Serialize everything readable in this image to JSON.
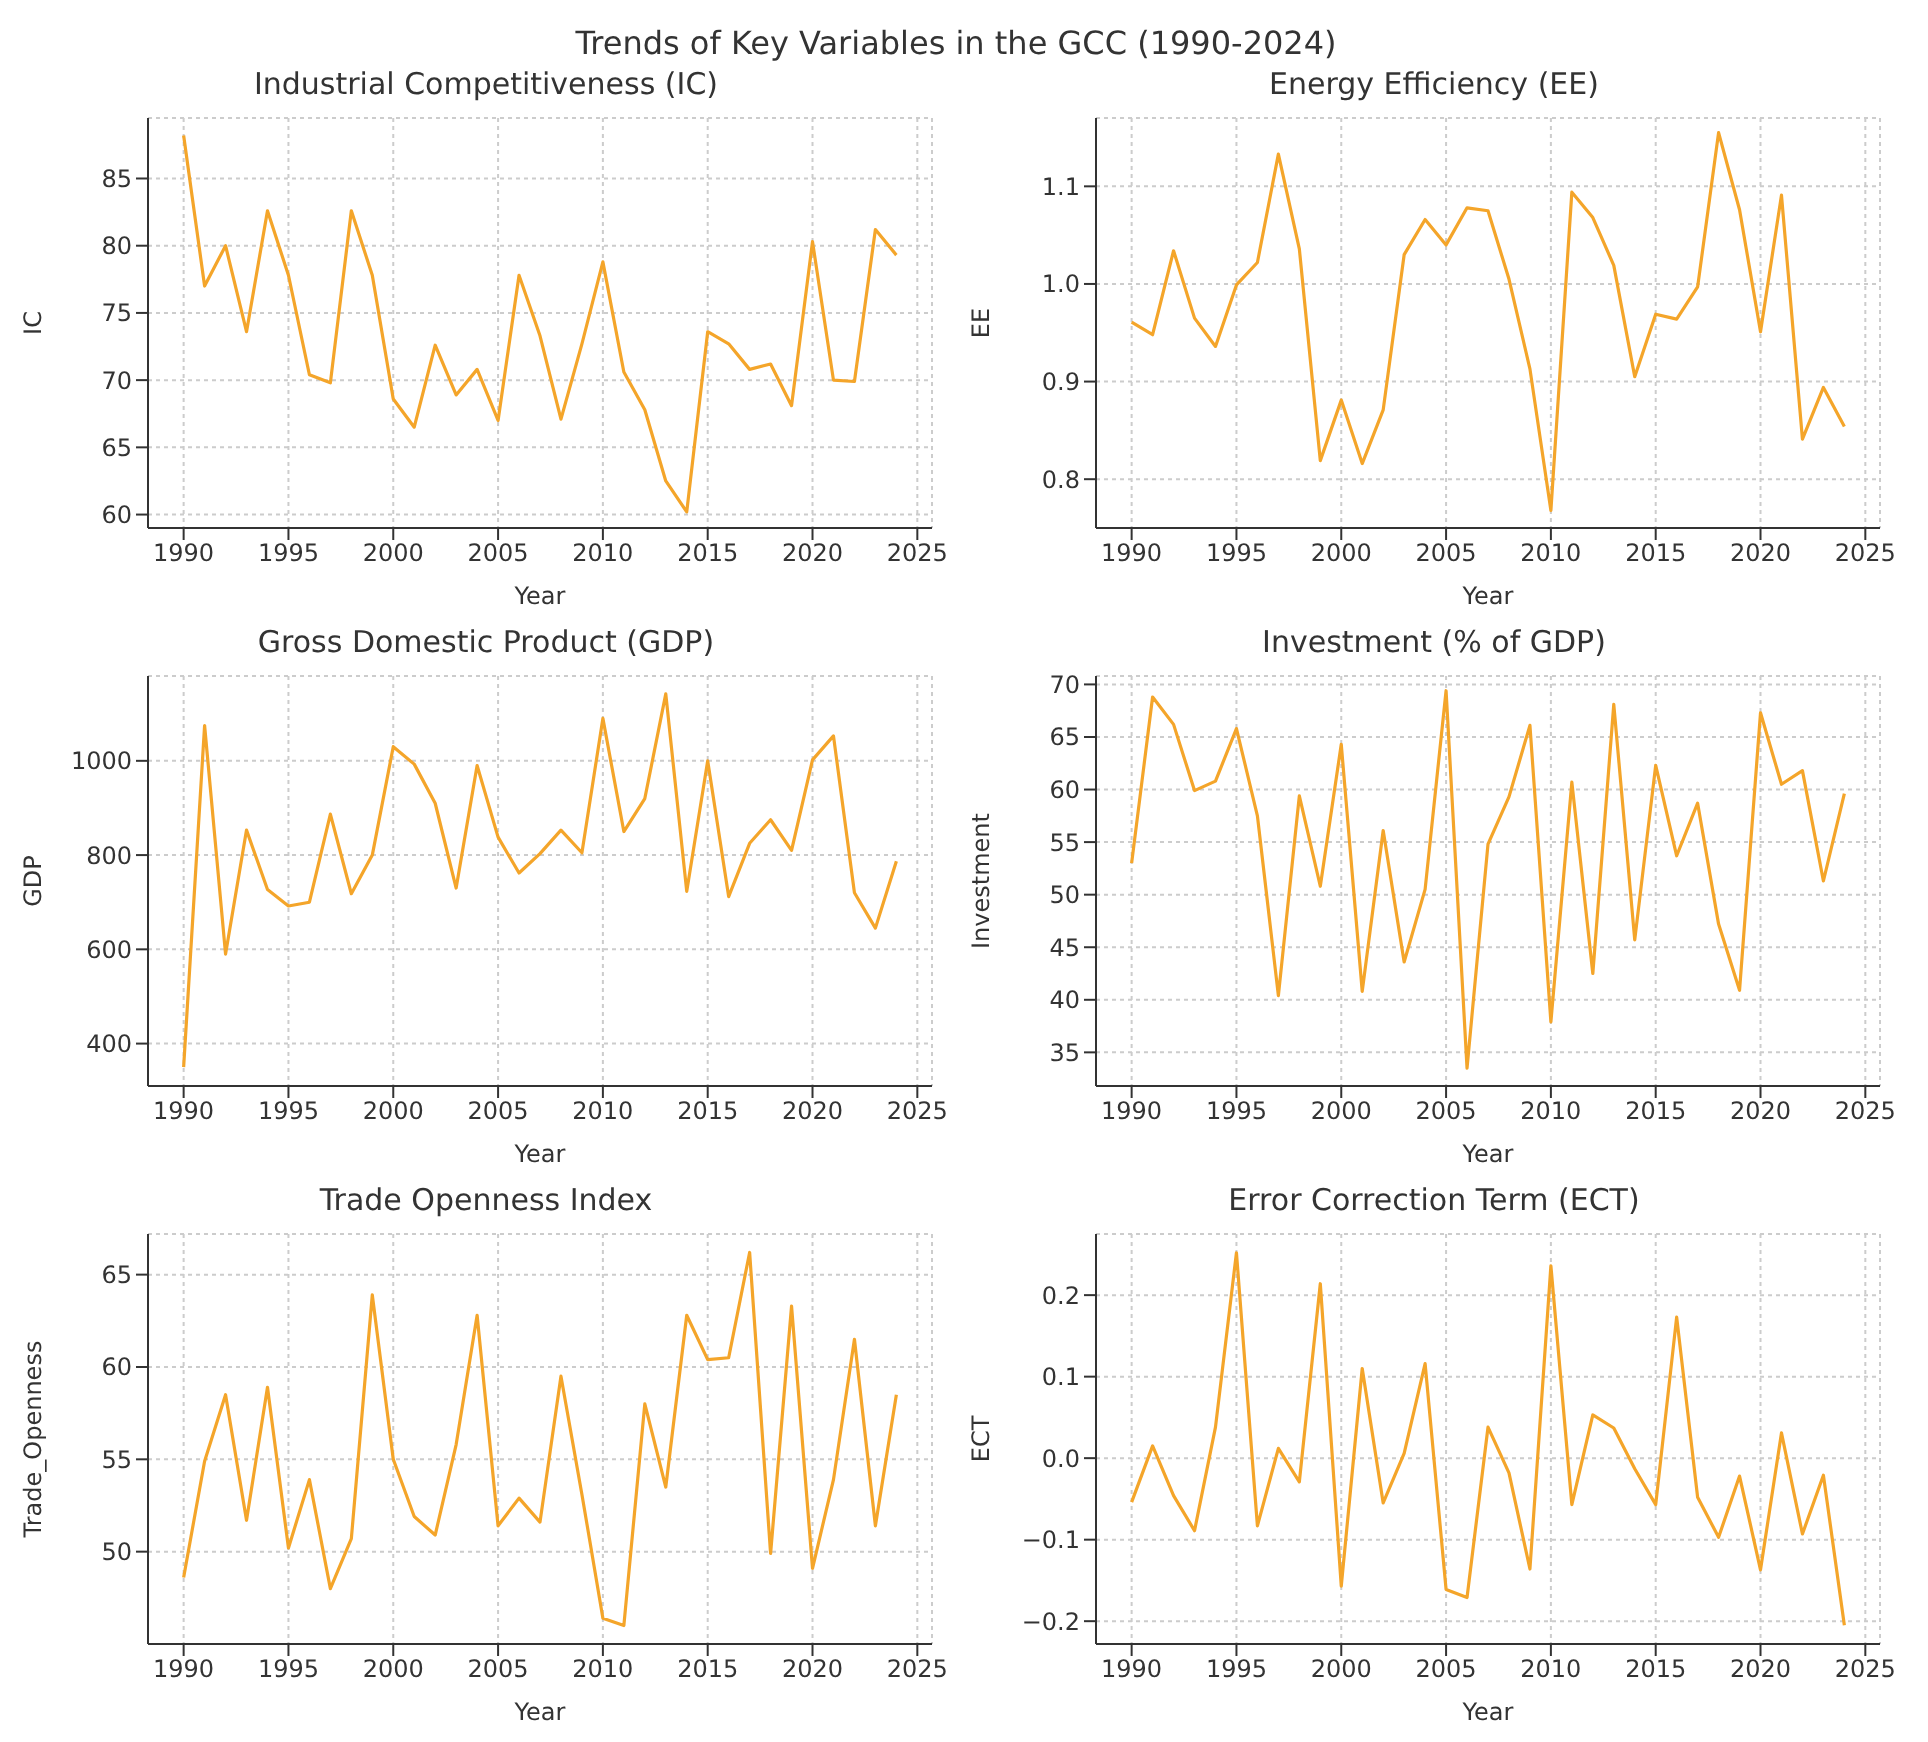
{
  "chart_data": [
    {
      "type": "other",
      "title": "Trends of Key Variables in the GCC (1990-2024)"
    },
    {
      "type": "line",
      "title": "Industrial Competitiveness (IC)",
      "xlabel": "Year",
      "ylabel": "IC",
      "grid": true,
      "marker": "none",
      "xlim": [
        1988.3,
        2025.7
      ],
      "xticks": [
        1990,
        1995,
        2000,
        2005,
        2010,
        2015,
        2020,
        2025
      ],
      "ylim": [
        59,
        89.5
      ],
      "yticks": [
        60,
        65,
        70,
        75,
        80,
        85
      ],
      "x": [
        1990,
        1991,
        1992,
        1993,
        1994,
        1995,
        1996,
        1997,
        1998,
        1999,
        2000,
        2001,
        2002,
        2003,
        2004,
        2005,
        2006,
        2007,
        2008,
        2009,
        2010,
        2011,
        2012,
        2013,
        2014,
        2015,
        2016,
        2017,
        2018,
        2019,
        2020,
        2021,
        2022,
        2023,
        2024
      ],
      "series": [
        {
          "color": "#f4a52a",
          "values": [
            88.2,
            77.0,
            80.0,
            73.6,
            82.6,
            77.8,
            70.4,
            69.8,
            82.6,
            77.8,
            68.6,
            66.5,
            72.6,
            68.9,
            70.8,
            67.0,
            77.8,
            73.3,
            67.1,
            72.7,
            78.8,
            70.6,
            67.8,
            62.5,
            60.2,
            73.6,
            72.7,
            70.8,
            71.2,
            68.1,
            80.3,
            70.0,
            69.9,
            81.2,
            79.3
          ]
        }
      ]
    },
    {
      "type": "line",
      "title": "Energy Efficiency (EE)",
      "xlabel": "Year",
      "ylabel": "EE",
      "grid": true,
      "marker": "none",
      "xlim": [
        1988.3,
        2025.7
      ],
      "xticks": [
        1990,
        1995,
        2000,
        2005,
        2010,
        2015,
        2020,
        2025
      ],
      "ylim": [
        0.75,
        1.17
      ],
      "yticks": [
        {
          "value": 0.8,
          "label": "0.8"
        },
        {
          "value": 0.9,
          "label": "0.9"
        },
        {
          "value": 1.0,
          "label": "1.0"
        },
        {
          "value": 1.1,
          "label": "1.1"
        }
      ],
      "x": [
        1990,
        1991,
        1992,
        1993,
        1994,
        1995,
        1996,
        1997,
        1998,
        1999,
        2000,
        2001,
        2002,
        2003,
        2004,
        2005,
        2006,
        2007,
        2008,
        2009,
        2010,
        2011,
        2012,
        2013,
        2014,
        2015,
        2016,
        2017,
        2018,
        2019,
        2020,
        2021,
        2022,
        2023,
        2024
      ],
      "series": [
        {
          "color": "#f4a52a",
          "values": [
            0.961,
            0.948,
            1.034,
            0.965,
            0.936,
            0.999,
            1.022,
            1.133,
            1.036,
            0.819,
            0.881,
            0.816,
            0.871,
            1.03,
            1.066,
            1.04,
            1.078,
            1.075,
            1.005,
            0.913,
            0.768,
            1.094,
            1.068,
            1.019,
            0.905,
            0.969,
            0.964,
            0.997,
            1.155,
            1.076,
            0.951,
            1.091,
            0.841,
            0.894,
            0.854
          ]
        }
      ]
    },
    {
      "type": "line",
      "title": "Gross Domestic Product (GDP)",
      "xlabel": "Year",
      "ylabel": "GDP",
      "grid": true,
      "marker": "none",
      "xlim": [
        1988.3,
        2025.7
      ],
      "xticks": [
        1990,
        1995,
        2000,
        2005,
        2010,
        2015,
        2020,
        2025
      ],
      "ylim": [
        310,
        1180
      ],
      "yticks": [
        400,
        600,
        800,
        1000
      ],
      "x": [
        1990,
        1991,
        1992,
        1993,
        1994,
        1995,
        1996,
        1997,
        1998,
        1999,
        2000,
        2001,
        2002,
        2003,
        2004,
        2005,
        2006,
        2007,
        2008,
        2009,
        2010,
        2011,
        2012,
        2013,
        2014,
        2015,
        2016,
        2017,
        2018,
        2019,
        2020,
        2021,
        2022,
        2023,
        2024
      ],
      "series": [
        {
          "color": "#f4a52a",
          "values": [
            350,
            1075,
            590,
            853,
            727,
            692,
            700,
            887,
            718,
            800,
            1030,
            993,
            910,
            730,
            990,
            838,
            762,
            803,
            853,
            805,
            1090,
            850,
            920,
            1142,
            723,
            1000,
            712,
            825,
            875,
            810,
            1002,
            1053,
            720,
            645,
            787
          ]
        }
      ]
    },
    {
      "type": "line",
      "title": "Investment (% of GDP)",
      "xlabel": "Year",
      "ylabel": "Investment",
      "grid": true,
      "marker": "none",
      "xlim": [
        1988.3,
        2025.7
      ],
      "xticks": [
        1990,
        1995,
        2000,
        2005,
        2010,
        2015,
        2020,
        2025
      ],
      "ylim": [
        31.8,
        70.8
      ],
      "yticks": [
        35,
        40,
        45,
        50,
        55,
        60,
        65,
        70
      ],
      "x": [
        1990,
        1991,
        1992,
        1993,
        1994,
        1995,
        1996,
        1997,
        1998,
        1999,
        2000,
        2001,
        2002,
        2003,
        2004,
        2005,
        2006,
        2007,
        2008,
        2009,
        2010,
        2011,
        2012,
        2013,
        2014,
        2015,
        2016,
        2017,
        2018,
        2019,
        2020,
        2021,
        2022,
        2023,
        2024
      ],
      "series": [
        {
          "color": "#f4a52a",
          "values": [
            53.0,
            68.8,
            66.2,
            59.9,
            60.8,
            65.8,
            57.5,
            40.4,
            59.4,
            50.8,
            64.3,
            40.8,
            56.1,
            43.6,
            50.5,
            69.4,
            33.5,
            54.8,
            59.3,
            66.1,
            37.9,
            60.7,
            42.5,
            68.1,
            45.7,
            62.3,
            53.7,
            58.7,
            47.2,
            40.9,
            67.3,
            60.5,
            61.8,
            51.3,
            59.6
          ]
        }
      ]
    },
    {
      "type": "line",
      "title": "Trade Openness Index",
      "xlabel": "Year",
      "ylabel": "Trade_Openness",
      "grid": true,
      "marker": "none",
      "xlim": [
        1988.3,
        2025.7
      ],
      "xticks": [
        1990,
        1995,
        2000,
        2005,
        2010,
        2015,
        2020,
        2025
      ],
      "ylim": [
        45.0,
        67.2
      ],
      "yticks": [
        50,
        55,
        60,
        65
      ],
      "x": [
        1990,
        1991,
        1992,
        1993,
        1994,
        1995,
        1996,
        1997,
        1998,
        1999,
        2000,
        2001,
        2002,
        2003,
        2004,
        2005,
        2006,
        2007,
        2008,
        2009,
        2010,
        2011,
        2012,
        2013,
        2014,
        2015,
        2016,
        2017,
        2018,
        2019,
        2020,
        2021,
        2022,
        2023,
        2024
      ],
      "series": [
        {
          "color": "#f4a52a",
          "values": [
            48.6,
            54.9,
            58.5,
            51.7,
            58.9,
            50.2,
            53.9,
            48.0,
            50.7,
            63.9,
            55.0,
            51.9,
            50.9,
            55.8,
            62.8,
            51.4,
            52.9,
            51.6,
            59.5,
            53.1,
            46.4,
            46.0,
            58.0,
            53.5,
            62.8,
            60.4,
            60.5,
            66.2,
            49.9,
            63.3,
            49.1,
            53.9,
            61.5,
            51.4,
            58.5
          ]
        }
      ]
    },
    {
      "type": "line",
      "title": "Error Correction Term (ECT)",
      "xlabel": "Year",
      "ylabel": "ECT",
      "grid": true,
      "marker": "none",
      "xlim": [
        1988.3,
        2025.7
      ],
      "xticks": [
        1990,
        1995,
        2000,
        2005,
        2010,
        2015,
        2020,
        2025
      ],
      "ylim": [
        -0.228,
        0.275
      ],
      "yticks": [
        {
          "value": -0.2,
          "label": "−0.2"
        },
        {
          "value": -0.1,
          "label": "−0.1"
        },
        {
          "value": 0,
          "label": "0.0"
        },
        {
          "value": 0.1,
          "label": "0.1"
        },
        {
          "value": 0.2,
          "label": "0.2"
        }
      ],
      "x": [
        1990,
        1991,
        1992,
        1993,
        1994,
        1995,
        1996,
        1997,
        1998,
        1999,
        2000,
        2001,
        2002,
        2003,
        2004,
        2005,
        2006,
        2007,
        2008,
        2009,
        2010,
        2011,
        2012,
        2013,
        2014,
        2015,
        2016,
        2017,
        2018,
        2019,
        2020,
        2021,
        2022,
        2023,
        2024
      ],
      "series": [
        {
          "color": "#f4a52a",
          "values": [
            -0.054,
            0.015,
            -0.046,
            -0.089,
            0.038,
            0.252,
            -0.083,
            0.012,
            -0.029,
            0.214,
            -0.157,
            0.11,
            -0.055,
            0.006,
            0.116,
            -0.161,
            -0.171,
            0.038,
            -0.018,
            -0.136,
            0.236,
            -0.057,
            0.053,
            0.037,
            -0.013,
            -0.057,
            0.173,
            -0.048,
            -0.097,
            -0.022,
            -0.137,
            0.031,
            -0.093,
            -0.021,
            -0.205
          ]
        }
      ]
    }
  ]
}
